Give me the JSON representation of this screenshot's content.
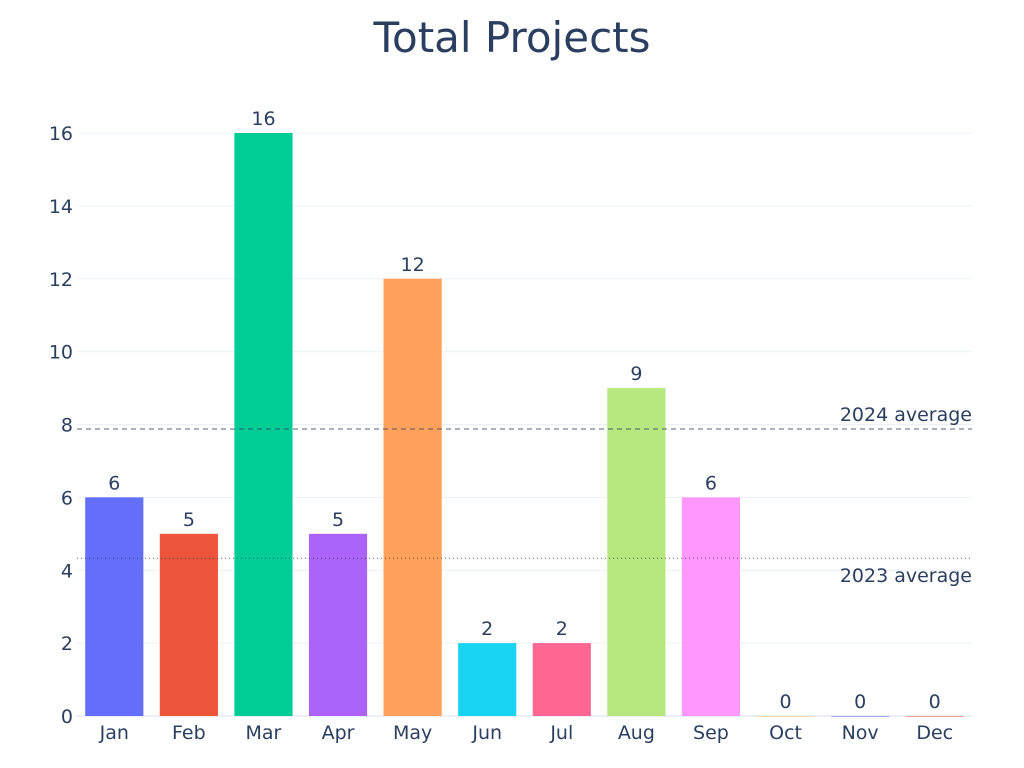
{
  "chart_data": {
    "type": "bar",
    "title": "Total Projects",
    "xlabel": "",
    "ylabel": "",
    "categories": [
      "Jan",
      "Feb",
      "Mar",
      "Apr",
      "May",
      "Jun",
      "Jul",
      "Aug",
      "Sep",
      "Oct",
      "Nov",
      "Dec"
    ],
    "values": [
      6,
      5,
      16,
      5,
      12,
      2,
      2,
      9,
      6,
      0,
      0,
      0
    ],
    "colors": [
      "#636efa",
      "#EF553B",
      "#00cc96",
      "#ab63fa",
      "#FFA15A",
      "#19d3f3",
      "#FF6692",
      "#B6E880",
      "#FF97FF",
      "#FECB52",
      "#636efa",
      "#EF553B"
    ],
    "ylim": [
      0,
      16
    ],
    "yticks": [
      0,
      2,
      4,
      6,
      8,
      10,
      12,
      14,
      16
    ],
    "grid": true,
    "reference_lines": [
      {
        "label": "2024 average",
        "value": 7.875,
        "style": "dashed"
      },
      {
        "label": "2023 average",
        "value": 4.33,
        "style": "dotted"
      }
    ]
  }
}
